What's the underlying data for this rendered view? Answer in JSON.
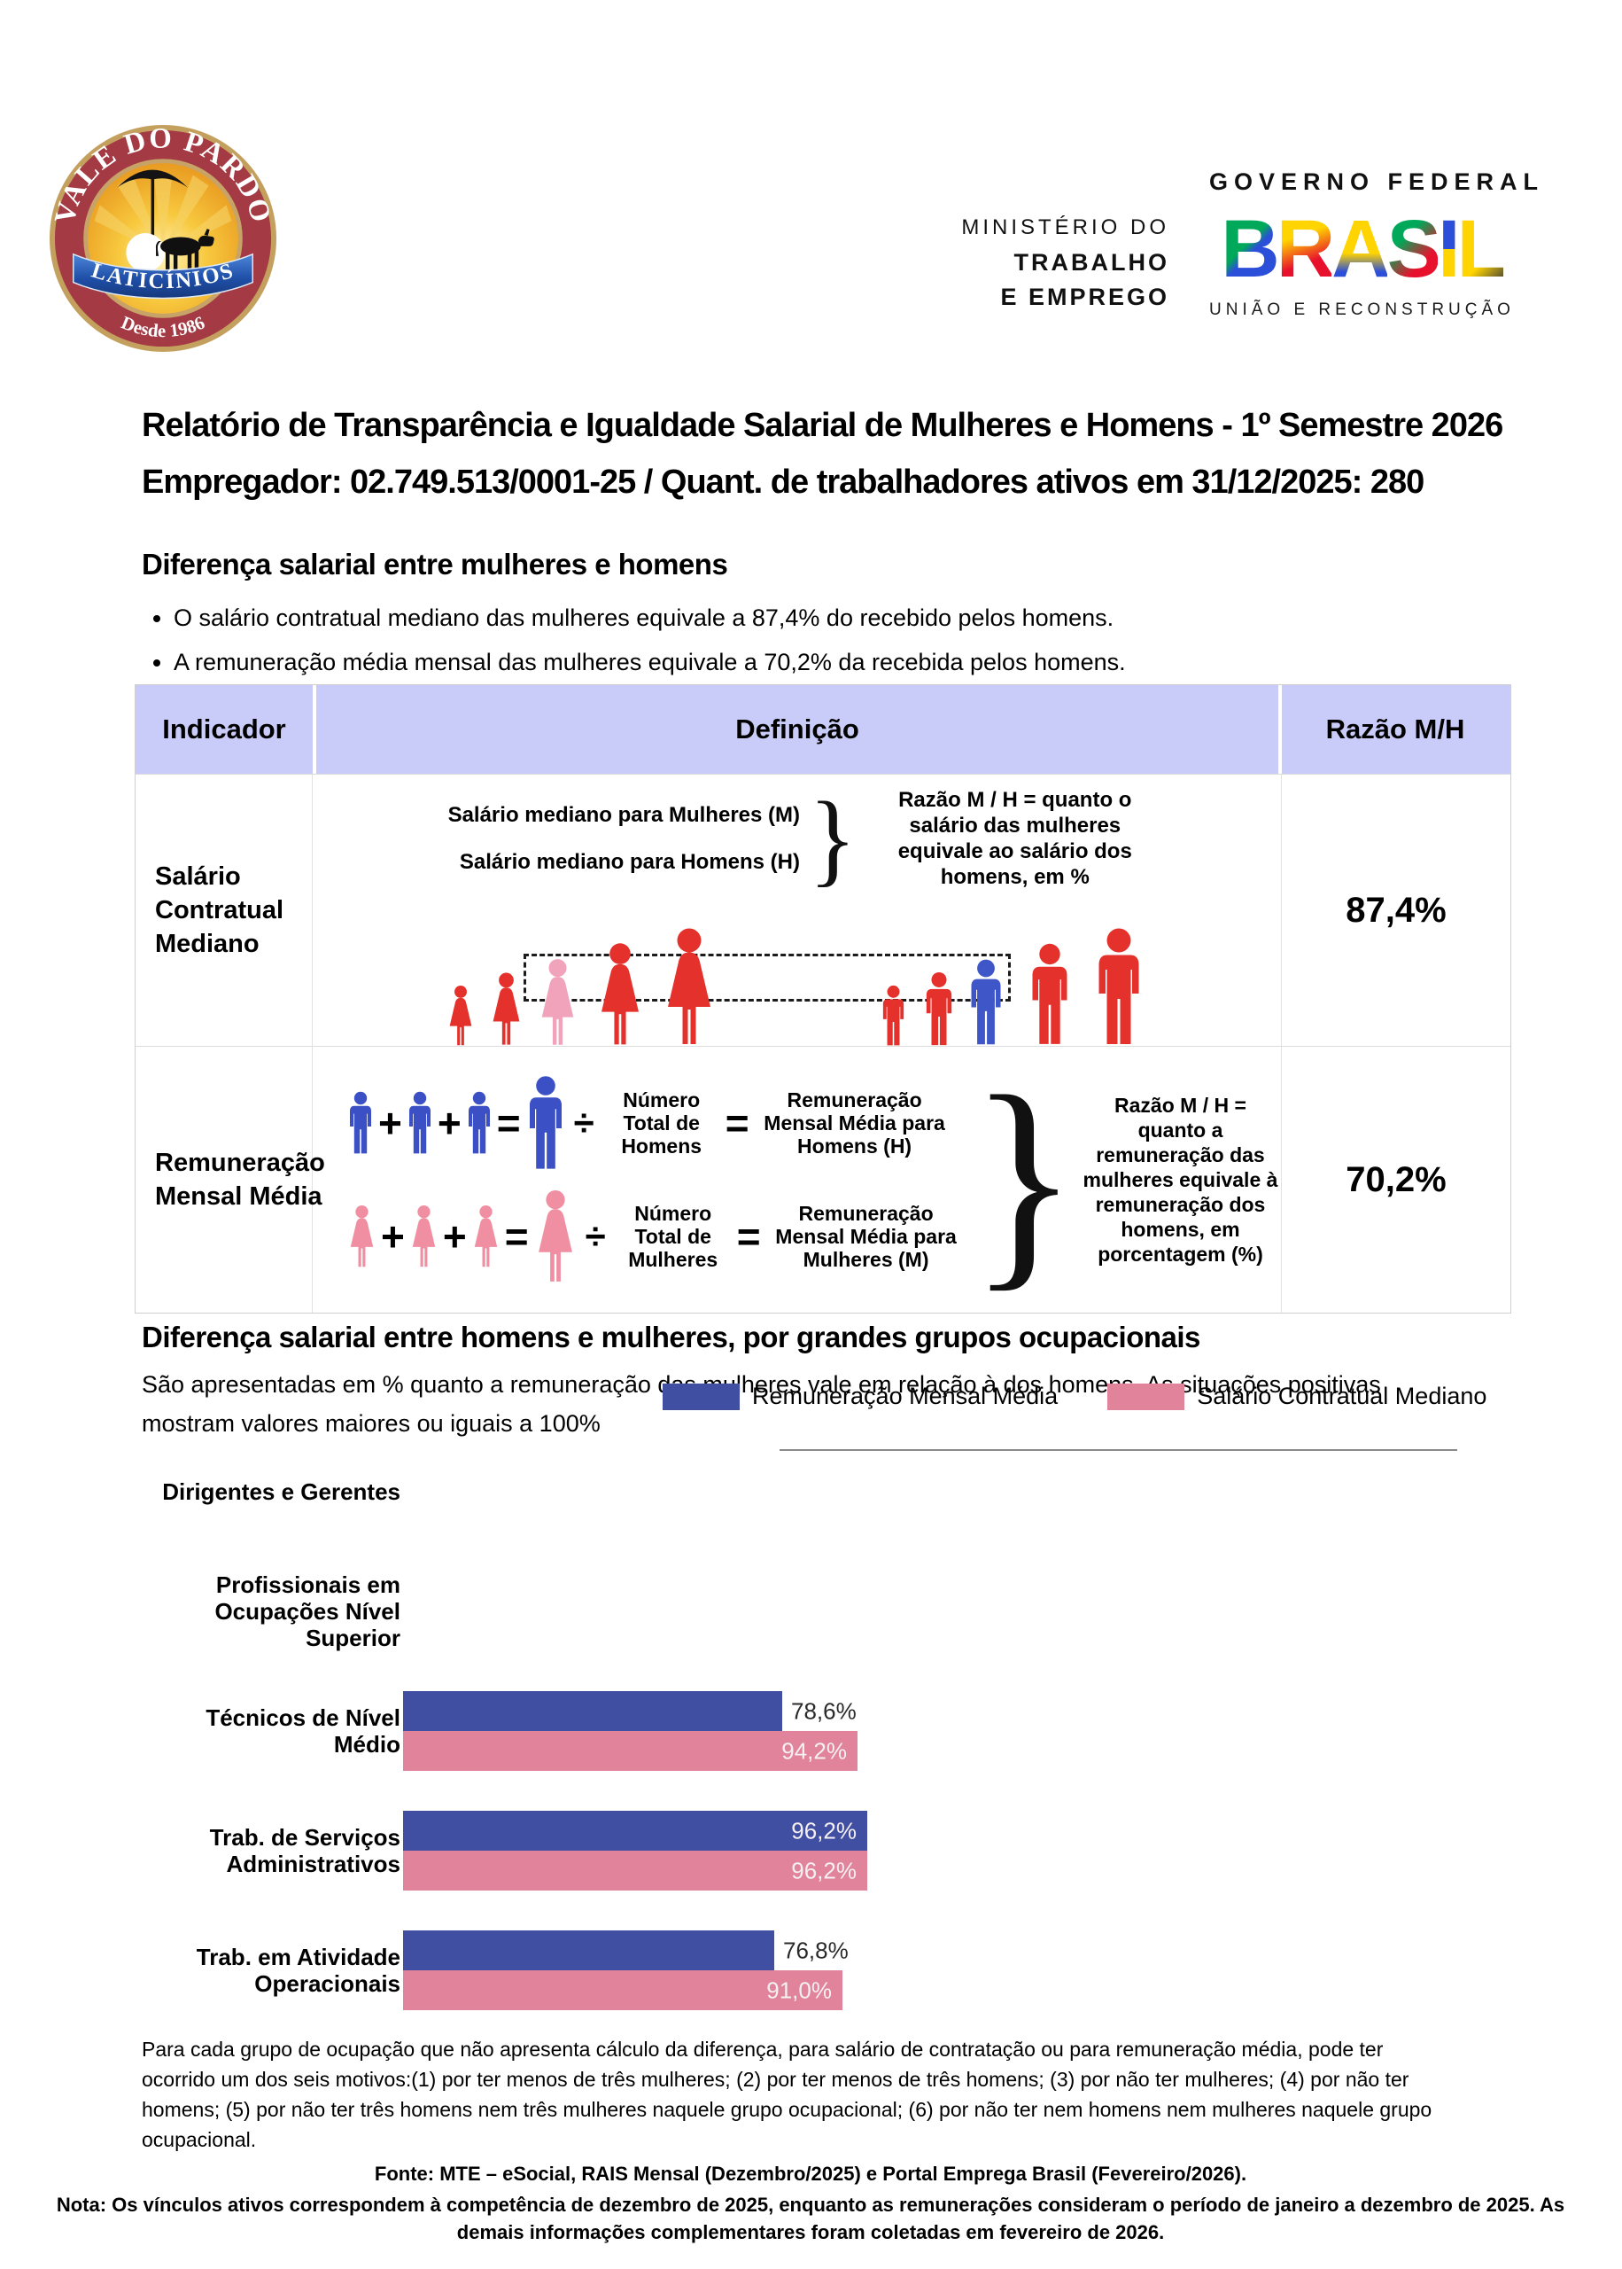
{
  "header": {
    "logo": {
      "arc_text": "VALE DO PARDO",
      "ribbon_text": "LATICÍNIOS",
      "since_text": "Desde 1986"
    },
    "ministry": {
      "line1": "MINISTÉRIO DO",
      "line2": "TRABALHO",
      "line3": "E EMPREGO"
    },
    "gov": {
      "top_label": "GOVERNO FEDERAL",
      "letters": [
        "B",
        "R",
        "A",
        "S",
        "I",
        "L"
      ],
      "bottom_label": "UNIÃO E RECONSTRUÇÃO"
    }
  },
  "title": {
    "line1": "Relatório de Transparência e Igualdade Salarial de Mulheres e Homens - 1º Semestre 2026",
    "line2": "Empregador: 02.749.513/0001-25 / Quant. de trabalhadores ativos em 31/12/2025: 280"
  },
  "operators": {
    "plus": "+",
    "equals": "=",
    "divide": "÷",
    "brace": "}"
  },
  "section1": {
    "heading": "Diferença salarial entre mulheres e homens",
    "bullets": [
      "O salário contratual mediano das mulheres equivale a 87,4% do recebido pelos homens.",
      "A remuneração média mensal das mulheres equivale a 70,2% da recebida pelos homens."
    ],
    "table": {
      "headers": [
        "Indicador",
        "Definição",
        "Razão M/H"
      ],
      "row1": {
        "indicator": "Salário Contratual Mediano",
        "def_line1": "Salário mediano para Mulheres (M)",
        "def_line2": "Salário mediano para Homens (H)",
        "explanation": "Razão M / H = quanto o salário das mulheres equivale ao salário dos homens, em %",
        "ratio": "87,4%"
      },
      "row2": {
        "indicator": "Remuneração Mensal Média",
        "men": {
          "count_label": "Número Total de Homens",
          "avg_label": "Remuneração Mensal Média para Homens (H)"
        },
        "women": {
          "count_label": "Número Total de Mulheres",
          "avg_label": "Remuneração Mensal Média para Mulheres (M)"
        },
        "explanation": "Razão M / H = quanto a remuneração das mulheres equivale à remuneração dos homens, em porcentagem (%)",
        "ratio": "70,2%"
      }
    }
  },
  "section2": {
    "heading": "Diferença salarial entre homens e mulheres, por grandes grupos ocupacionais",
    "intro": "São apresentadas em % quanto a remuneração das mulheres vale em relação à dos homens. As situações positivas mostram valores maiores ou iguais a 100%"
  },
  "chart_data": {
    "type": "bar",
    "orientation": "horizontal",
    "categories": [
      "Dirigentes e Gerentes",
      "Profissionais em Ocupações Nível Superior",
      "Técnicos de Nível Médio",
      "Trab. de Serviços Administrativos",
      "Trab. em Atividade Operacionais"
    ],
    "series": [
      {
        "name": "Remuneração Mensal Média",
        "color": "#414FA3",
        "values": [
          null,
          null,
          78.6,
          96.2,
          76.8
        ],
        "labels": [
          "",
          "",
          "78,6%",
          "96,2%",
          "76,8%"
        ],
        "label_inside": [
          false,
          false,
          false,
          true,
          false
        ]
      },
      {
        "name": "Salário Contratual Mediano",
        "color": "#E0839B",
        "values": [
          null,
          null,
          94.2,
          96.2,
          91.0
        ],
        "labels": [
          "",
          "",
          "94,2%",
          "96,2%",
          "91,0%"
        ],
        "label_inside": [
          false,
          false,
          true,
          true,
          true
        ]
      }
    ],
    "xlim": [
      0,
      100
    ],
    "legend_position": "top"
  },
  "footer": {
    "paragraph": "Para cada grupo de ocupação que não apresenta cálculo da diferença, para salário de contratação ou para remuneração média, pode ter ocorrido um dos seis motivos:(1) por ter menos de três mulheres; (2) por ter menos de três homens; (3) por não ter mulheres; (4) por não ter homens; (5) por não ter três homens nem três mulheres naquele grupo ocupacional; (6) por não ter nem homens nem mulheres naquele grupo ocupacional.",
    "fonte": "Fonte: MTE – eSocial, RAIS Mensal (Dezembro/2025) e Portal Emprega Brasil (Fevereiro/2026).",
    "nota": "Nota: Os vínculos ativos correspondem à competência de dezembro de 2025, enquanto as remunerações consideram o período de janeiro a dezembro de 2025. As demais informações complementares foram coletadas em fevereiro de 2026."
  }
}
